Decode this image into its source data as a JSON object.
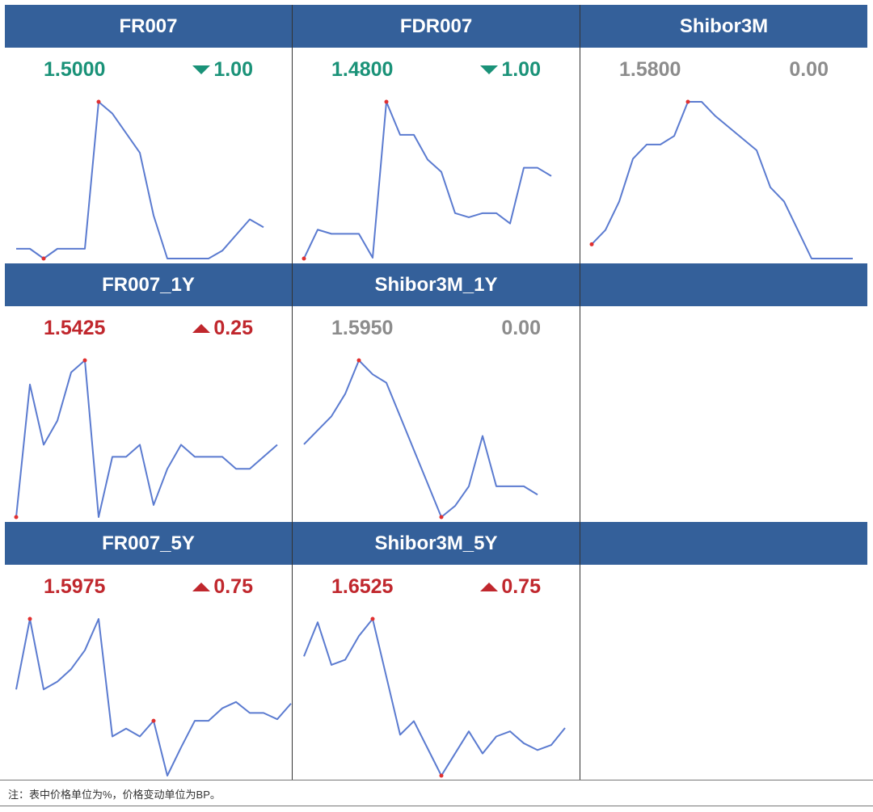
{
  "colors": {
    "header_bg": "#34609a",
    "up": "#c0272d",
    "down": "#1a9278",
    "flat": "#8c8c8c",
    "line": "#5b7bd0",
    "marker": "#e03030"
  },
  "cells": [
    {
      "name": "FR007",
      "value": "1.5000",
      "change": "1.00",
      "dir": "down",
      "series": [
        1.5125,
        1.5125,
        1.5,
        1.5125,
        1.5125,
        1.5125,
        1.7,
        1.685,
        1.66,
        1.635,
        1.555,
        1.5,
        1.5,
        1.5,
        1.5,
        1.51,
        1.53,
        1.55,
        1.54
      ],
      "highlight": [
        2,
        6
      ]
    },
    {
      "name": "FDR007",
      "value": "1.4800",
      "change": "1.00",
      "dir": "down",
      "series": [
        1.46,
        1.53,
        1.52,
        1.52,
        1.52,
        1.462,
        1.84,
        1.76,
        1.76,
        1.7,
        1.67,
        1.57,
        1.56,
        1.57,
        1.57,
        1.545,
        1.68,
        1.68,
        1.66
      ],
      "highlight": [
        0,
        6
      ]
    },
    {
      "name": "Shibor3M",
      "value": "1.5800",
      "change": "0.00",
      "dir": "flat",
      "series": [
        1.545,
        1.55,
        1.56,
        1.575,
        1.58,
        1.58,
        1.583,
        1.595,
        1.595,
        1.59,
        1.586,
        1.582,
        1.578,
        1.565,
        1.56,
        1.55,
        1.54,
        1.54,
        1.54,
        1.54
      ],
      "highlight": [
        0,
        7
      ]
    },
    {
      "name": "FR007_1Y",
      "value": "1.5425",
      "change": "0.25",
      "dir": "up",
      "series": [
        1.525,
        1.58,
        1.555,
        1.565,
        1.585,
        1.59,
        1.525,
        1.55,
        1.55,
        1.555,
        1.53,
        1.545,
        1.555,
        1.55,
        1.55,
        1.55,
        1.545,
        1.545,
        1.55,
        1.555
      ],
      "highlight": [
        0,
        5
      ]
    },
    {
      "name": "Shibor3M_1Y",
      "value": "1.5950",
      "change": "0.00",
      "dir": "flat",
      "series": [
        1.6,
        1.605,
        1.61,
        1.618,
        1.63,
        1.625,
        1.622,
        1.61,
        1.598,
        1.586,
        1.574,
        1.578,
        1.585,
        1.603,
        1.585,
        1.585,
        1.585,
        1.582
      ],
      "highlight": [
        10,
        4
      ]
    },
    {
      "name": "FR007_5Y",
      "value": "1.5975",
      "change": "0.75",
      "dir": "up",
      "series": [
        1.615,
        1.66,
        1.615,
        1.62,
        1.628,
        1.64,
        1.66,
        1.585,
        1.59,
        1.585,
        1.595,
        1.56,
        1.578,
        1.595,
        1.595,
        1.603,
        1.607,
        1.6,
        1.6,
        1.596,
        1.606
      ],
      "highlight": [
        10,
        1
      ]
    },
    {
      "name": "Shibor3M_5Y",
      "value": "1.6525",
      "change": "0.75",
      "dir": "up",
      "series": [
        1.69,
        1.71,
        1.685,
        1.688,
        1.702,
        1.712,
        1.678,
        1.644,
        1.652,
        1.636,
        1.62,
        1.633,
        1.646,
        1.633,
        1.643,
        1.646,
        1.639,
        1.635,
        1.638,
        1.648
      ],
      "highlight": [
        10,
        5
      ]
    }
  ],
  "note": "注：表中价格单位为%，价格变动单位为BP。"
}
